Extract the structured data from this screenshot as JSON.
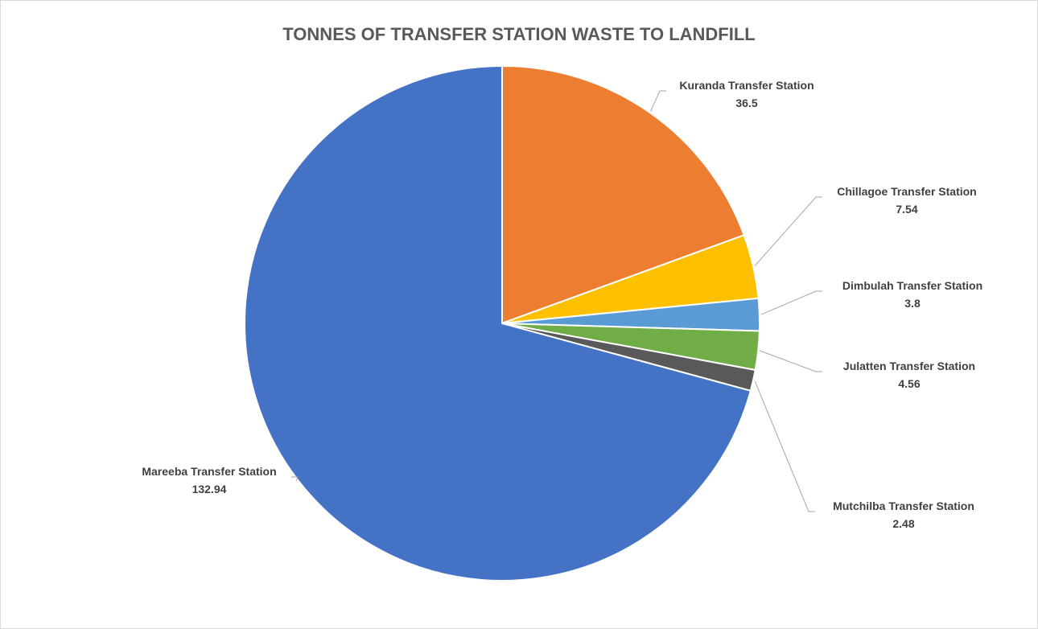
{
  "chart_data": {
    "type": "pie",
    "title": "TONNES OF TRANSFER STATION WASTE TO LANDFILL",
    "slices": [
      {
        "name": "Kuranda Transfer Station",
        "value": 36.5,
        "value_label": "36.5",
        "color": "#ED7D31"
      },
      {
        "name": "Chillagoe Transfer Station",
        "value": 7.54,
        "value_label": "7.54",
        "color": "#FFC000"
      },
      {
        "name": "Dimbulah Transfer Station",
        "value": 3.8,
        "value_label": "3.8",
        "color": "#5B9BD5"
      },
      {
        "name": "Julatten Transfer Station",
        "value": 4.56,
        "value_label": "4.56",
        "color": "#70AD47"
      },
      {
        "name": "Mutchilba Transfer Station",
        "value": 2.48,
        "value_label": "2.48",
        "color": "#595959"
      },
      {
        "name": "Mareeba Transfer Station",
        "value": 132.94,
        "value_label": "132.94",
        "color": "#4472C4"
      }
    ],
    "legend": "none",
    "data_labels": "outside with leader lines"
  }
}
